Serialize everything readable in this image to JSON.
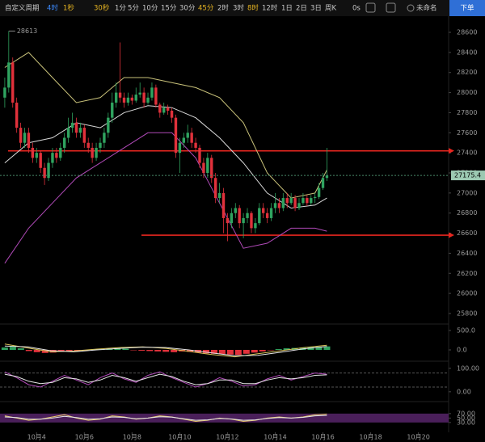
{
  "toolbar": {
    "custom": "自定义周期",
    "intervals": [
      "4时",
      "1秒",
      "30秒",
      "1分",
      "5分",
      "10分",
      "15分",
      "30分",
      "45分",
      "2时",
      "3时",
      "8时",
      "12时",
      "1日",
      "2日",
      "3日",
      "周K"
    ],
    "time": "0s",
    "layout": "未命名",
    "order": "下单"
  },
  "chart_data": [
    {
      "type": "candlestick",
      "up_color": "#2fa35f",
      "down_color": "#e0313b",
      "xlim": [
        -1.2,
        111.6
      ],
      "xticks": [
        {
          "value": 8,
          "label": "10月4"
        },
        {
          "value": 20,
          "label": "10月6"
        },
        {
          "value": 32,
          "label": "10月8"
        },
        {
          "value": 44,
          "label": "10月10"
        },
        {
          "value": 56,
          "label": "10月12"
        },
        {
          "value": 68,
          "label": "10月14"
        },
        {
          "value": 80,
          "label": "10月16"
        },
        {
          "value": 92,
          "label": "10月18"
        },
        {
          "value": 104,
          "label": "10月20"
        }
      ],
      "ylim": [
        25700,
        28750
      ],
      "yticks": [
        25800,
        26000,
        26200,
        26400,
        26600,
        26800,
        27000,
        27200,
        27400,
        27600,
        27800,
        28000,
        28200,
        28400,
        28600
      ],
      "high_label": 28613,
      "last_price": 27175.4,
      "levels": [
        27420,
        26580
      ],
      "level_color": "#e8261f",
      "candles": [
        [
          27950,
          28150,
          27850,
          28050
        ],
        [
          28050,
          28613,
          28000,
          28300
        ],
        [
          28300,
          28350,
          27850,
          27900
        ],
        [
          27900,
          27950,
          27600,
          27650
        ],
        [
          27650,
          27700,
          27450,
          27500
        ],
        [
          27500,
          27650,
          27450,
          27600
        ],
        [
          27600,
          27650,
          27400,
          27450
        ],
        [
          27450,
          27500,
          27300,
          27350
        ],
        [
          27350,
          27450,
          27300,
          27400
        ],
        [
          27400,
          27420,
          27200,
          27250
        ],
        [
          27250,
          27300,
          27080,
          27150
        ],
        [
          27150,
          27350,
          27120,
          27300
        ],
        [
          27300,
          27450,
          27250,
          27400
        ],
        [
          27400,
          27450,
          27300,
          27350
        ],
        [
          27350,
          27500,
          27320,
          27450
        ],
        [
          27450,
          27600,
          27400,
          27550
        ],
        [
          27550,
          27750,
          27500,
          27650
        ],
        [
          27650,
          27800,
          27600,
          27700
        ],
        [
          27700,
          27750,
          27550,
          27600
        ],
        [
          27600,
          27700,
          27550,
          27650
        ],
        [
          27650,
          27680,
          27450,
          27500
        ],
        [
          27500,
          27550,
          27400,
          27450
        ],
        [
          27450,
          27500,
          27300,
          27350
        ],
        [
          27350,
          27500,
          27320,
          27450
        ],
        [
          27450,
          27550,
          27400,
          27500
        ],
        [
          27500,
          27650,
          27450,
          27600
        ],
        [
          27600,
          27800,
          27550,
          27750
        ],
        [
          27750,
          28000,
          27700,
          27900
        ],
        [
          27900,
          28100,
          27850,
          28000
        ],
        [
          28000,
          28500,
          27900,
          27950
        ],
        [
          27950,
          28000,
          27850,
          27900
        ],
        [
          27900,
          28000,
          27870,
          27950
        ],
        [
          27950,
          27980,
          27880,
          27920
        ],
        [
          27920,
          28050,
          27900,
          27980
        ],
        [
          27980,
          28100,
          27950,
          28000
        ],
        [
          28000,
          28050,
          27850,
          27900
        ],
        [
          27900,
          28000,
          27880,
          27950
        ],
        [
          27950,
          28100,
          27920,
          28050
        ],
        [
          28050,
          28080,
          27850,
          27880
        ],
        [
          27880,
          27900,
          27750,
          27800
        ],
        [
          27800,
          27900,
          27780,
          27850
        ],
        [
          27850,
          27880,
          27780,
          27820
        ],
        [
          27820,
          27850,
          27700,
          27750
        ],
        [
          27750,
          27780,
          27350,
          27400
        ],
        [
          27400,
          27550,
          27200,
          27500
        ],
        [
          27500,
          27600,
          27450,
          27550
        ],
        [
          27550,
          27680,
          27500,
          27600
        ],
        [
          27600,
          27650,
          27450,
          27500
        ],
        [
          27500,
          27550,
          27400,
          27450
        ],
        [
          27450,
          27480,
          27250,
          27300
        ],
        [
          27300,
          27350,
          27150,
          27200
        ],
        [
          27200,
          27400,
          27150,
          27350
        ],
        [
          27350,
          27380,
          27100,
          27150
        ],
        [
          27150,
          27200,
          26900,
          26950
        ],
        [
          26950,
          27100,
          26900,
          27000
        ],
        [
          27000,
          27050,
          26600,
          26750
        ],
        [
          26750,
          26800,
          26520,
          26700
        ],
        [
          26700,
          26850,
          26650,
          26800
        ],
        [
          26800,
          26900,
          26750,
          26850
        ],
        [
          26850,
          26880,
          26650,
          26700
        ],
        [
          26700,
          26800,
          26550,
          26750
        ],
        [
          26750,
          26850,
          26700,
          26800
        ],
        [
          26800,
          26820,
          26600,
          26650
        ],
        [
          26650,
          26750,
          26600,
          26700
        ],
        [
          26700,
          26900,
          26680,
          26850
        ],
        [
          26850,
          26900,
          26750,
          26800
        ],
        [
          26800,
          26850,
          26700,
          26750
        ],
        [
          26750,
          26900,
          26720,
          26850
        ],
        [
          26850,
          27000,
          26800,
          26900
        ],
        [
          26900,
          26950,
          26800,
          26850
        ],
        [
          26850,
          27000,
          26820,
          26950
        ],
        [
          26950,
          27000,
          26850,
          26900
        ],
        [
          26900,
          27000,
          26880,
          26950
        ],
        [
          26950,
          26980,
          26820,
          26850
        ],
        [
          26850,
          26950,
          26830,
          26900
        ],
        [
          26900,
          27000,
          26880,
          26950
        ],
        [
          26950,
          26980,
          26870,
          26900
        ],
        [
          26900,
          26980,
          26880,
          26950
        ],
        [
          26950,
          27000,
          26900,
          26960
        ],
        [
          26960,
          27100,
          26940,
          27050
        ],
        [
          27050,
          27200,
          27030,
          27150
        ],
        [
          27150,
          27450,
          27120,
          27175.4
        ]
      ],
      "bands": [
        {
          "color": "#c9c27a",
          "x": [
            0,
            6,
            12,
            18,
            24,
            30,
            36,
            42,
            48,
            54,
            60,
            66,
            72,
            78,
            81
          ],
          "values": [
            28250,
            28400,
            28150,
            27900,
            27950,
            28150,
            28150,
            28100,
            28050,
            27950,
            27700,
            27200,
            26950,
            27000,
            27230
          ]
        },
        {
          "color": "#d8d8d8",
          "x": [
            0,
            6,
            12,
            18,
            24,
            30,
            36,
            42,
            48,
            54,
            60,
            66,
            72,
            78,
            81
          ],
          "values": [
            27300,
            27500,
            27550,
            27700,
            27650,
            27800,
            27870,
            27850,
            27750,
            27550,
            27300,
            27000,
            26850,
            26880,
            26950
          ]
        },
        {
          "color": "#b04ab8",
          "x": [
            0,
            6,
            12,
            18,
            24,
            30,
            36,
            42,
            48,
            54,
            60,
            66,
            72,
            78,
            81
          ],
          "values": [
            26300,
            26650,
            26900,
            27150,
            27300,
            27450,
            27600,
            27600,
            27350,
            26900,
            26450,
            26500,
            26650,
            26650,
            26620
          ]
        }
      ]
    },
    {
      "type": "macd",
      "ylim": [
        -250,
        750
      ],
      "yticks": [
        {
          "value": 500,
          "label": "500.0"
        },
        {
          "value": 0,
          "label": "0.0"
        }
      ],
      "histogram": [
        60,
        80,
        40,
        -30,
        -60,
        -80,
        -70,
        -50,
        -40,
        -30,
        -20,
        10,
        20,
        30,
        40,
        30,
        -10,
        -20,
        -30,
        -40,
        -50,
        -60,
        -40,
        -50,
        -70,
        -90,
        -100,
        -110,
        -120,
        -130,
        -100,
        -70,
        -40,
        -10,
        20,
        40,
        50,
        60,
        70,
        80,
        90
      ],
      "lines": [
        {
          "color": "#d8c35a",
          "values": [
            150,
            50,
            -50,
            -30,
            20,
            60,
            80,
            40,
            -40,
            -120,
            -180,
            -100,
            -20,
            60,
            120
          ]
        },
        {
          "color": "#e6e6e6",
          "values": [
            100,
            80,
            -20,
            -50,
            0,
            40,
            70,
            60,
            0,
            -80,
            -150,
            -140,
            -60,
            30,
            90
          ]
        }
      ]
    },
    {
      "type": "oscillator",
      "ylim": [
        -35,
        120
      ],
      "yticks": [
        {
          "value": 100,
          "label": "100.00"
        },
        {
          "value": 0,
          "label": "0.00"
        }
      ],
      "ref_lines": [
        80,
        20
      ],
      "lines": [
        {
          "color": "#b04ab8",
          "values": [
            85,
            60,
            30,
            20,
            45,
            70,
            50,
            30,
            60,
            80,
            55,
            40,
            70,
            85,
            60,
            40,
            20,
            35,
            60,
            45,
            25,
            30,
            55,
            70,
            50,
            65,
            80,
            75
          ]
        },
        {
          "color": "#e6e6e6",
          "values": [
            75,
            65,
            45,
            35,
            40,
            60,
            55,
            40,
            50,
            70,
            60,
            45,
            60,
            75,
            65,
            45,
            30,
            35,
            50,
            50,
            35,
            35,
            50,
            60,
            55,
            60,
            70,
            72
          ]
        }
      ]
    },
    {
      "type": "band-oscillator",
      "ylim": [
        -14,
        113
      ],
      "yticks": [
        {
          "value": 70,
          "label": "70.00"
        },
        {
          "value": 50,
          "label": "50.00"
        },
        {
          "value": 30,
          "label": "30.00"
        }
      ],
      "band": [
        30,
        70
      ],
      "lines": [
        {
          "color": "#e6c96a",
          "values": [
            60,
            50,
            40,
            45,
            55,
            65,
            50,
            40,
            45,
            60,
            55,
            45,
            50,
            60,
            55,
            45,
            35,
            40,
            50,
            45,
            35,
            40,
            50,
            55,
            50,
            55,
            65,
            68
          ]
        },
        {
          "color": "#e6e6e6",
          "values": [
            55,
            52,
            45,
            45,
            50,
            58,
            52,
            45,
            47,
            55,
            53,
            47,
            50,
            56,
            54,
            47,
            40,
            42,
            48,
            46,
            40,
            42,
            48,
            52,
            50,
            53,
            60,
            62
          ]
        }
      ]
    }
  ]
}
